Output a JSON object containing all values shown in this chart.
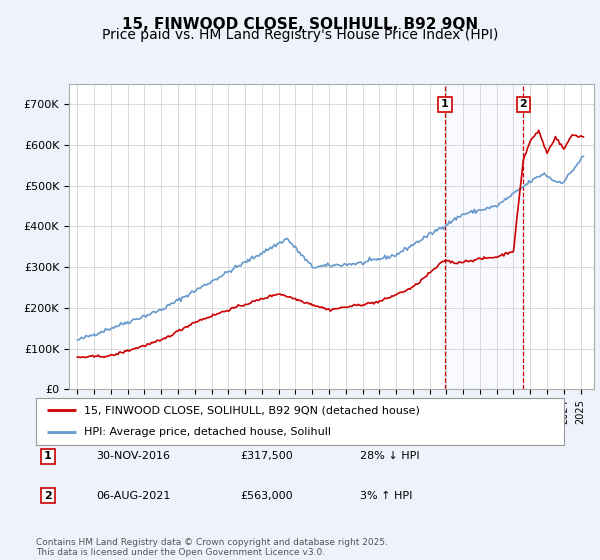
{
  "title": "15, FINWOOD CLOSE, SOLIHULL, B92 9QN",
  "subtitle": "Price paid vs. HM Land Registry's House Price Index (HPI)",
  "ylim": [
    0,
    750000
  ],
  "yticks": [
    0,
    100000,
    200000,
    300000,
    400000,
    500000,
    600000,
    700000
  ],
  "ytick_labels": [
    "£0",
    "£100K",
    "£200K",
    "£300K",
    "£400K",
    "£500K",
    "£600K",
    "£700K"
  ],
  "hpi_color": "#6699cc",
  "price_color": "#cc0000",
  "vline_color": "#cc0000",
  "sale1_date": "30-NOV-2016",
  "sale1_price": 317500,
  "sale1_hpi_diff": "28% ↓ HPI",
  "sale2_date": "06-AUG-2021",
  "sale2_price": 563000,
  "sale2_hpi_diff": "3% ↑ HPI",
  "legend_label1": "15, FINWOOD CLOSE, SOLIHULL, B92 9QN (detached house)",
  "legend_label2": "HPI: Average price, detached house, Solihull",
  "footnote": "Contains HM Land Registry data © Crown copyright and database right 2025.\nThis data is licensed under the Open Government Licence v3.0.",
  "background_color": "#eef2fb",
  "plot_bg_color": "#ffffff",
  "grid_color": "#cccccc",
  "title_fontsize": 11,
  "subtitle_fontsize": 10,
  "sale1_t": 2016.917,
  "sale2_t": 2021.583,
  "xlim_left": 1994.5,
  "xlim_right": 2025.8
}
